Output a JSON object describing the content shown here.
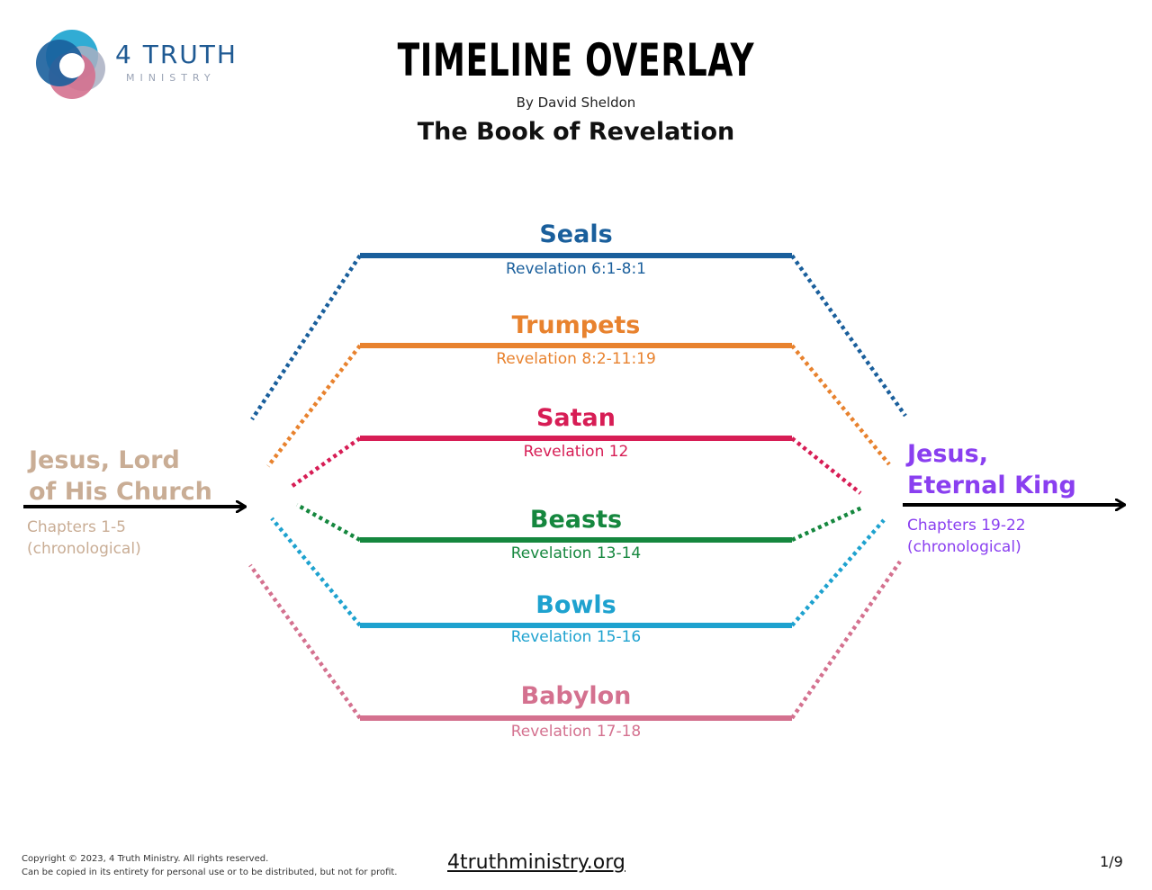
{
  "header": {
    "logo_name": "4 TRUTH",
    "logo_sub": "MINISTRY",
    "title": "TIMELINE OVERLAY",
    "byline": "By David Sheldon",
    "subtitle": "The Book of Revelation"
  },
  "left": {
    "title_line1": "Jesus, Lord",
    "title_line2": "of His Church",
    "sub_line1": "Chapters 1-5",
    "sub_line2": "(chronological)",
    "color": "#c9ad95"
  },
  "right": {
    "title_line1": "Jesus,",
    "title_line2": "Eternal King",
    "sub_line1": "Chapters 19-22",
    "sub_line2": "(chronological)",
    "color": "#8a3ff0"
  },
  "bands": [
    {
      "label": "Seals",
      "ref": "Revelation 6:1-8:1",
      "color": "#1a5f9c"
    },
    {
      "label": "Trumpets",
      "ref": "Revelation 8:2-11:19",
      "color": "#e8822e"
    },
    {
      "label": "Satan",
      "ref": "Revelation 12",
      "color": "#d71d55"
    },
    {
      "label": "Beasts",
      "ref": "Revelation 13-14",
      "color": "#15873e"
    },
    {
      "label": "Bowls",
      "ref": "Revelation 15-16",
      "color": "#1ea2cf"
    },
    {
      "label": "Babylon",
      "ref": "Revelation 17-18",
      "color": "#d4718f"
    }
  ],
  "footer": {
    "copyright": "Copyright © 2023, 4 Truth Ministry. All rights reserved.",
    "permission": "Can be copied in its entirety for personal use or to be distributed, but not for profit.",
    "url": "4truthministry.org",
    "page": "1/9"
  }
}
